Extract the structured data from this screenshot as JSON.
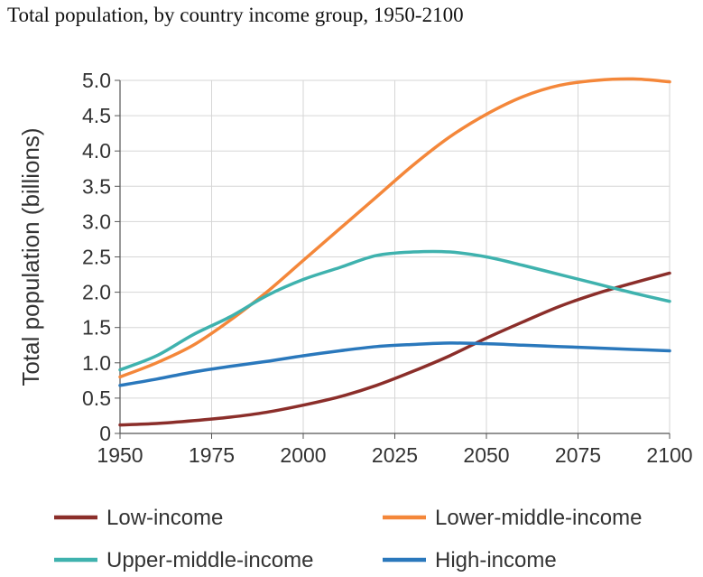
{
  "title": "Total population, by country income group, 1950-2100",
  "chart_data": {
    "type": "line",
    "ylabel": "Total population (billions)",
    "xlabel": "",
    "xlim": [
      1950,
      2100
    ],
    "ylim": [
      0,
      5.0
    ],
    "x_ticks": [
      "1950",
      "1975",
      "2000",
      "2025",
      "2050",
      "2075",
      "2100"
    ],
    "y_ticks": [
      "0",
      "0.5",
      "1.0",
      "1.5",
      "2.0",
      "2.5",
      "3.0",
      "3.5",
      "4.0",
      "4.5",
      "5.0"
    ],
    "grid": true,
    "legend_position": "bottom",
    "x": [
      1950,
      1960,
      1970,
      1980,
      1990,
      2000,
      2010,
      2020,
      2030,
      2040,
      2050,
      2060,
      2070,
      2080,
      2090,
      2100
    ],
    "series": [
      {
        "name": "Low-income",
        "color": "#8b2e2a",
        "values": [
          0.12,
          0.14,
          0.18,
          0.23,
          0.3,
          0.4,
          0.52,
          0.68,
          0.88,
          1.1,
          1.35,
          1.58,
          1.8,
          1.98,
          2.13,
          2.27
        ]
      },
      {
        "name": "Lower-middle-income",
        "color": "#f4873a",
        "values": [
          0.8,
          1.0,
          1.25,
          1.6,
          2.0,
          2.45,
          2.9,
          3.35,
          3.8,
          4.2,
          4.52,
          4.77,
          4.93,
          5.0,
          5.02,
          4.98
        ]
      },
      {
        "name": "Upper-middle-income",
        "color": "#3fb2ae",
        "values": [
          0.9,
          1.1,
          1.4,
          1.65,
          1.95,
          2.18,
          2.35,
          2.52,
          2.57,
          2.57,
          2.5,
          2.38,
          2.25,
          2.12,
          1.99,
          1.87
        ]
      },
      {
        "name": "High-income",
        "color": "#2a78bc",
        "values": [
          0.68,
          0.77,
          0.87,
          0.95,
          1.02,
          1.1,
          1.17,
          1.23,
          1.26,
          1.28,
          1.27,
          1.25,
          1.23,
          1.21,
          1.19,
          1.17
        ]
      }
    ]
  }
}
